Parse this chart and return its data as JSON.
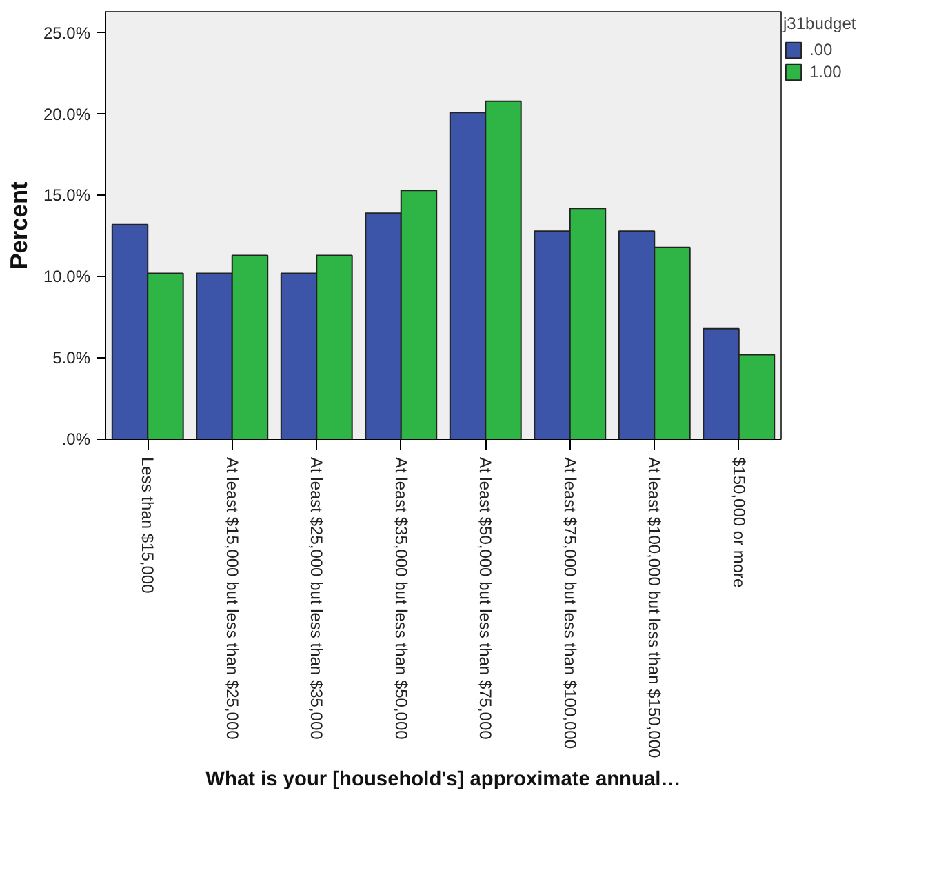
{
  "chart_data": {
    "type": "bar",
    "xlabel": "What is your [household's] approximate annual…",
    "ylabel": "Percent",
    "legend_title": "j31budget",
    "categories": [
      "Less than $15,000",
      "At least $15,000 but less than $25,000",
      "At least $25,000 but less than $35,000",
      "At least $35,000 but less than $50,000",
      "At least $50,000 but less than $75,000",
      "At least $75,000 but less than $100,000",
      "At least $100,000 but less than $150,000",
      "$150,000 or more"
    ],
    "series": [
      {
        "name": ".00",
        "color": "#3d55a8",
        "values": [
          13.2,
          10.2,
          10.2,
          13.9,
          20.1,
          12.8,
          12.8,
          6.8
        ]
      },
      {
        "name": "1.00",
        "color": "#2fb545",
        "values": [
          10.2,
          11.3,
          11.3,
          15.3,
          20.8,
          14.2,
          11.8,
          5.2
        ]
      }
    ],
    "ylim": [
      0,
      26.3
    ],
    "yticks": [
      {
        "value": 0,
        "label": ".0%"
      },
      {
        "value": 5,
        "label": "5.0%"
      },
      {
        "value": 10,
        "label": "10.0%"
      },
      {
        "value": 15,
        "label": "15.0%"
      },
      {
        "value": 20,
        "label": "20.0%"
      },
      {
        "value": 25,
        "label": "25.0%"
      }
    ],
    "grid": false,
    "legend": "top right"
  }
}
